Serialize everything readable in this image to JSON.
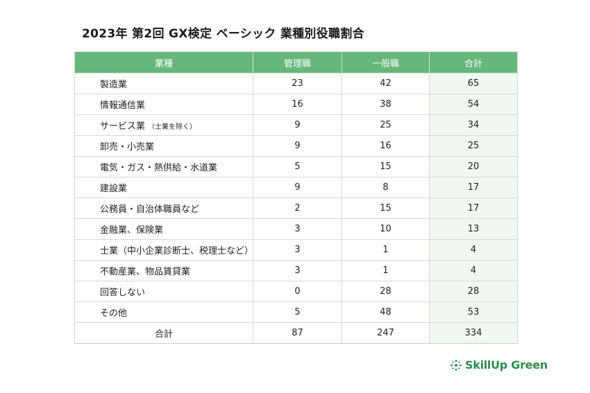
{
  "title": "2023年 第2回 GX検定 ベーシック 業種別役職割合",
  "table": {
    "headers": [
      "業種",
      "管理職",
      "一般職",
      "合計"
    ],
    "rows": [
      {
        "industry": "製造業",
        "note": "",
        "manager": "23",
        "general": "42",
        "total": "65"
      },
      {
        "industry": "情報通信業",
        "note": "",
        "manager": "16",
        "general": "38",
        "total": "54"
      },
      {
        "industry": "サービス業",
        "note": "（士業を除く）",
        "manager": "9",
        "general": "25",
        "total": "34"
      },
      {
        "industry": "卸売・小売業",
        "note": "",
        "manager": "9",
        "general": "16",
        "total": "25"
      },
      {
        "industry": "電気・ガス・熱供給・水道業",
        "note": "",
        "manager": "5",
        "general": "15",
        "total": "20"
      },
      {
        "industry": "建設業",
        "note": "",
        "manager": "9",
        "general": "8",
        "total": "17"
      },
      {
        "industry": "公務員・自治体職員など",
        "note": "",
        "manager": "2",
        "general": "15",
        "total": "17"
      },
      {
        "industry": "金融業、保険業",
        "note": "",
        "manager": "3",
        "general": "10",
        "total": "13"
      },
      {
        "industry": "士業（中小企業診断士、税理士など）",
        "note": "",
        "manager": "3",
        "general": "1",
        "total": "4"
      },
      {
        "industry": "不動産業、物品賃貸業",
        "note": "",
        "manager": "3",
        "general": "1",
        "total": "4"
      },
      {
        "industry": "回答しない",
        "note": "",
        "manager": "0",
        "general": "28",
        "total": "28"
      },
      {
        "industry": "その他",
        "note": "",
        "manager": "5",
        "general": "48",
        "total": "53"
      }
    ],
    "summary": {
      "label": "合計",
      "manager": "87",
      "general": "247",
      "total": "334"
    }
  },
  "logo": {
    "text": "SkillUp Green",
    "icon": "leaf-burst-icon",
    "color": "#2e8b4e"
  },
  "colors": {
    "header": "#67b67c",
    "total_column": "#f1f8f2"
  }
}
